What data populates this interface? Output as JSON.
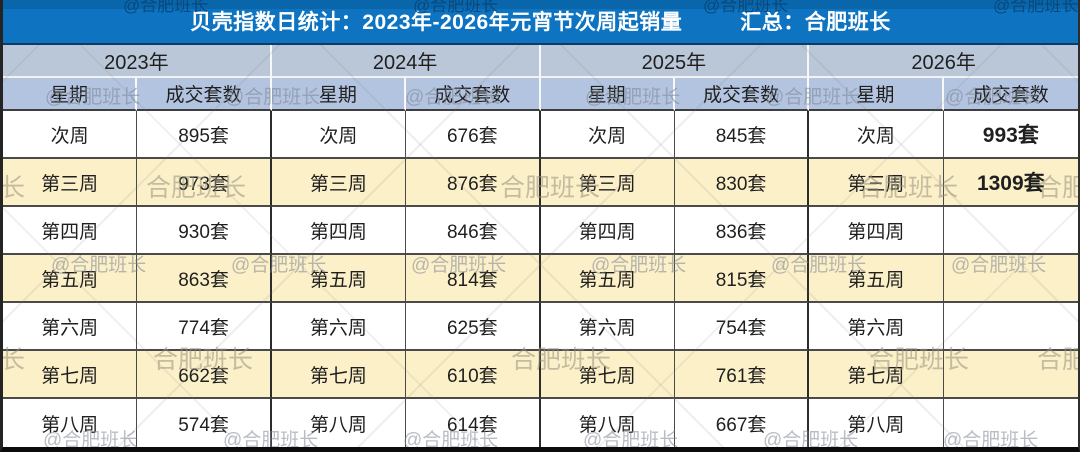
{
  "header": {
    "title": "贝壳指数日统计：2023年-2026年元宵节次周起销量",
    "summary": "汇总：合肥班长"
  },
  "columns": {
    "years": [
      "2023年",
      "2024年",
      "2025年",
      "2026年"
    ],
    "week_label": "星期",
    "count_label": "成交套数"
  },
  "rows": [
    {
      "week": "次周",
      "values": [
        "895套",
        "676套",
        "845套",
        "993套"
      ]
    },
    {
      "week": "第三周",
      "values": [
        "973套",
        "876套",
        "830套",
        "1309套"
      ]
    },
    {
      "week": "第四周",
      "values": [
        "930套",
        "846套",
        "836套",
        ""
      ]
    },
    {
      "week": "第五周",
      "values": [
        "863套",
        "814套",
        "815套",
        ""
      ]
    },
    {
      "week": "第六周",
      "values": [
        "774套",
        "625套",
        "754套",
        ""
      ]
    },
    {
      "week": "第七周",
      "values": [
        "662套",
        "610套",
        "761套",
        ""
      ]
    },
    {
      "week": "第八周",
      "values": [
        "574套",
        "614套",
        "667套",
        ""
      ]
    }
  ],
  "watermark": {
    "full": "@合肥班长",
    "name": "合肥班长",
    "tail": "班长",
    "head": "合肥"
  },
  "colors": {
    "header_bg": "#0e73c0",
    "header_strip": "#0a66ab",
    "year_bg": "#bac7d8",
    "sub_bg": "#b2c4df",
    "alt_bg": "#fcf0c8",
    "highlight_red": "#ee1c22",
    "text": "#1f1f1f"
  },
  "chart_data": {
    "type": "table",
    "title": "贝壳指数日统计：2023年-2026年元宵节次周起销量",
    "subtitle": "汇总：合肥班长",
    "categories": [
      "次周",
      "第三周",
      "第四周",
      "第五周",
      "第六周",
      "第七周",
      "第八周"
    ],
    "series": [
      {
        "name": "2023年",
        "values": [
          895,
          973,
          930,
          863,
          774,
          662,
          574
        ]
      },
      {
        "name": "2024年",
        "values": [
          676,
          876,
          846,
          814,
          625,
          610,
          614
        ]
      },
      {
        "name": "2025年",
        "values": [
          845,
          830,
          836,
          815,
          754,
          761,
          667
        ]
      },
      {
        "name": "2026年",
        "values": [
          993,
          1309,
          null,
          null,
          null,
          null,
          null
        ]
      }
    ],
    "unit": "套",
    "column_headers_per_year": [
      "星期",
      "成交套数"
    ],
    "highlighted_values": [
      {
        "series": "2026年",
        "category": "次周",
        "value": 993
      },
      {
        "series": "2026年",
        "category": "第三周",
        "value": 1309
      }
    ]
  }
}
